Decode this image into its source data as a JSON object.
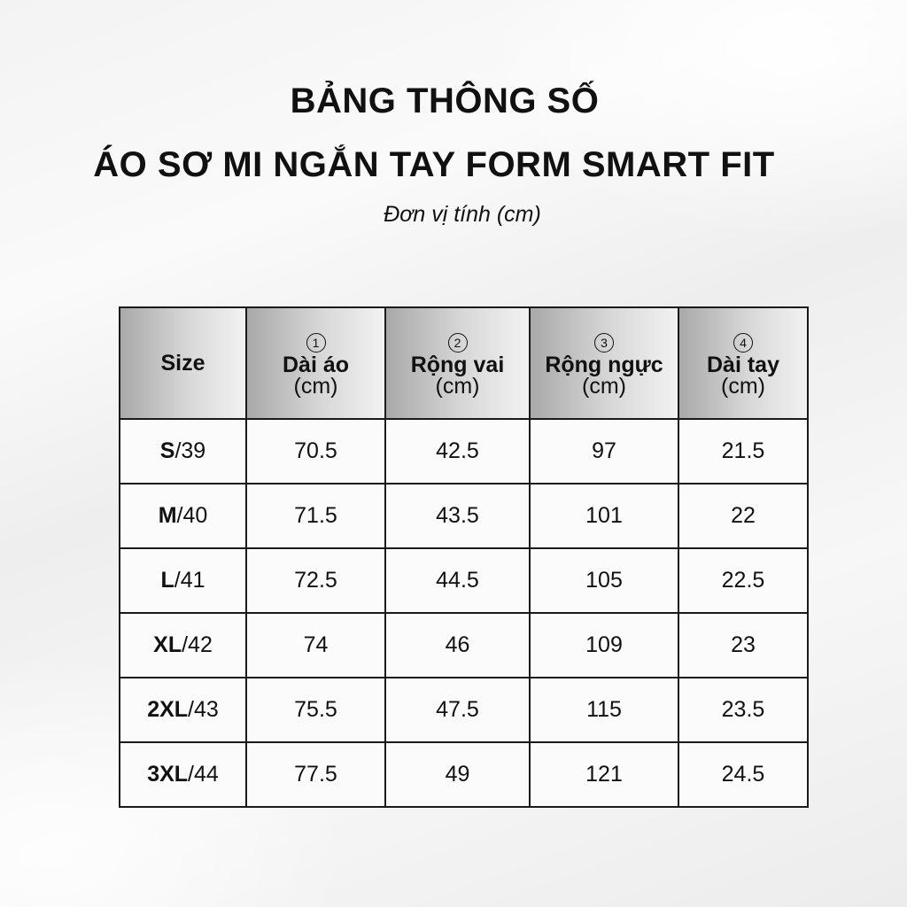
{
  "title_line1": "BẢNG THÔNG SỐ",
  "title_line2": "ÁO SƠ MI NGẮN TAY FORM SMART FIT",
  "unit_note": "Đơn vị tính (cm)",
  "table": {
    "headers": [
      {
        "label": "Size"
      },
      {
        "num": "1",
        "label": "Dài áo",
        "unit": "(cm)"
      },
      {
        "num": "2",
        "label": "Rộng vai",
        "unit": "(cm)"
      },
      {
        "num": "3",
        "label": "Rộng ngực",
        "unit": "(cm)"
      },
      {
        "num": "4",
        "label": "Dài tay",
        "unit": "(cm)"
      }
    ],
    "rows": [
      {
        "size": "S",
        "code": "/39",
        "values": [
          "70.5",
          "42.5",
          "97",
          "21.5"
        ]
      },
      {
        "size": "M",
        "code": "/40",
        "values": [
          "71.5",
          "43.5",
          "101",
          "22"
        ]
      },
      {
        "size": "L",
        "code": "/41",
        "values": [
          "72.5",
          "44.5",
          "105",
          "22.5"
        ]
      },
      {
        "size": "XL",
        "code": "/42",
        "values": [
          "74",
          "46",
          "109",
          "23"
        ]
      },
      {
        "size": "2XL",
        "code": "/43",
        "values": [
          "75.5",
          "47.5",
          "115",
          "23.5"
        ]
      },
      {
        "size": "3XL",
        "code": "/44",
        "values": [
          "77.5",
          "49",
          "121",
          "24.5"
        ]
      }
    ]
  }
}
